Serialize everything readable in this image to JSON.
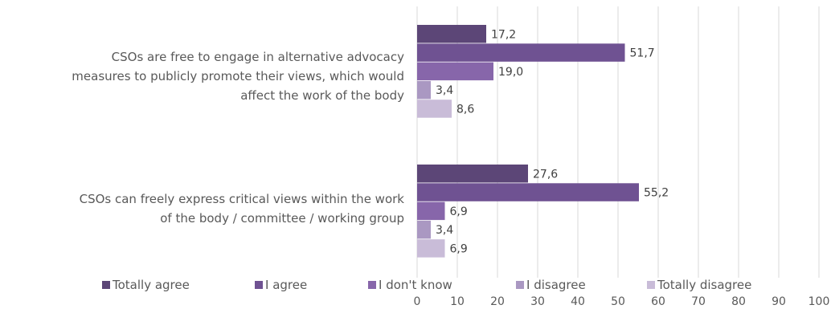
{
  "chart_data": {
    "type": "bar",
    "orientation": "horizontal",
    "categories": [
      [
        "CSOs are free to engage in alternative advocacy",
        "measures to publicly promote their views, which would",
        "affect the work of the body"
      ],
      [
        "CSOs can freely express critical views within the work",
        "of the body / committee / working group"
      ]
    ],
    "series": [
      {
        "name": "Totally agree",
        "color": "#5c4677",
        "values": [
          17.2,
          27.6
        ],
        "labels": [
          "17,2",
          "27,6"
        ]
      },
      {
        "name": "I agree",
        "color": "#6f5292",
        "values": [
          51.7,
          55.2
        ],
        "labels": [
          "51,7",
          "55,2"
        ]
      },
      {
        "name": "I don't know",
        "color": "#8766aa",
        "values": [
          19.0,
          6.9
        ],
        "labels": [
          "19,0",
          "6,9"
        ]
      },
      {
        "name": "I disagree",
        "color": "#aa98c2",
        "values": [
          3.4,
          3.4
        ],
        "labels": [
          "3,4",
          "3,4"
        ]
      },
      {
        "name": "Totally disagree",
        "color": "#c9bcd8",
        "values": [
          8.6,
          6.9
        ],
        "labels": [
          "8,6",
          "6,9"
        ]
      }
    ],
    "xlim": [
      0,
      100
    ],
    "ticks": [
      "0",
      "10",
      "20",
      "30",
      "40",
      "50",
      "60",
      "70",
      "80",
      "90",
      "100"
    ],
    "grid": true,
    "legend_position": "bottom"
  }
}
